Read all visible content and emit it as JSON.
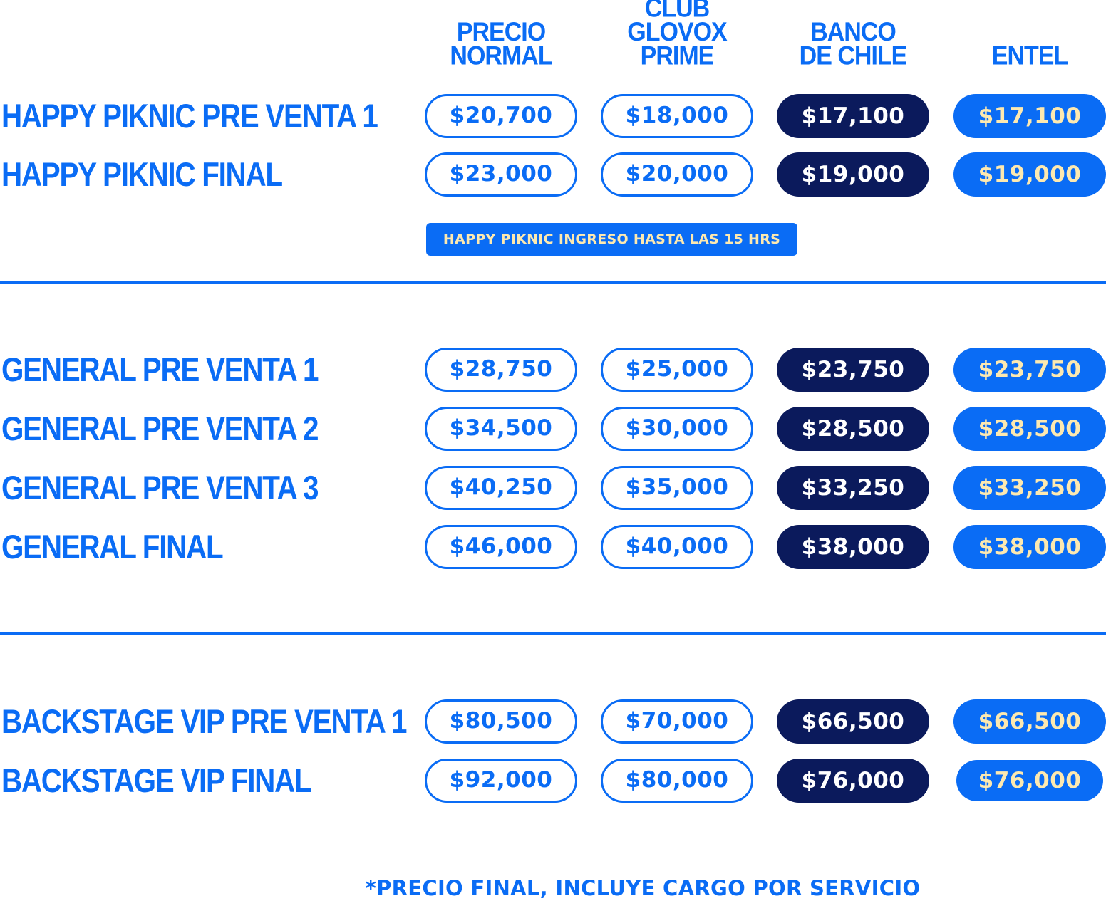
{
  "columns": [
    {
      "key": "precio_normal",
      "label": "PRECIO\nNORMAL"
    },
    {
      "key": "club_glovox_prime",
      "label": "CLUB\nGLOVOX\nPRIME"
    },
    {
      "key": "banco_de_chile",
      "label": "BANCO\nDE CHILE"
    },
    {
      "key": "entel",
      "label": "ENTEL"
    }
  ],
  "sections": [
    {
      "rows": [
        {
          "label": "HAPPY PIKNIC PRE VENTA 1",
          "prices": [
            "$20,700",
            "$18,000",
            "$17,100",
            "$17,100"
          ]
        },
        {
          "label": "HAPPY PIKNIC FINAL",
          "prices": [
            "$23,000",
            "$20,000",
            "$19,000",
            "$19,000"
          ]
        }
      ],
      "note": "HAPPY PIKNIC INGRESO HASTA LAS 15 HRS"
    },
    {
      "rows": [
        {
          "label": "GENERAL PRE VENTA 1",
          "prices": [
            "$28,750",
            "$25,000",
            "$23,750",
            "$23,750"
          ]
        },
        {
          "label": "GENERAL PRE VENTA 2",
          "prices": [
            "$34,500",
            "$30,000",
            "$28,500",
            "$28,500"
          ]
        },
        {
          "label": "GENERAL PRE VENTA 3",
          "prices": [
            "$40,250",
            "$35,000",
            "$33,250",
            "$33,250"
          ]
        },
        {
          "label": "GENERAL FINAL",
          "prices": [
            "$46,000",
            "$40,000",
            "$38,000",
            "$38,000"
          ]
        }
      ]
    },
    {
      "rows": [
        {
          "label": "BACKSTAGE VIP PRE VENTA 1",
          "prices": [
            "$80,500",
            "$70,000",
            "$66,500",
            "$66,500"
          ]
        },
        {
          "label": "BACKSTAGE VIP FINAL",
          "prices": [
            "$92,000",
            "$80,000",
            "$76,000",
            "$76,000"
          ]
        }
      ]
    }
  ],
  "footer": "*PRECIO FINAL, INCLUYE CARGO POR SERVICIO",
  "colors": {
    "brand_blue": "#0a6cf5",
    "navy": "#0b1a5c",
    "cream": "#fde9b0"
  }
}
